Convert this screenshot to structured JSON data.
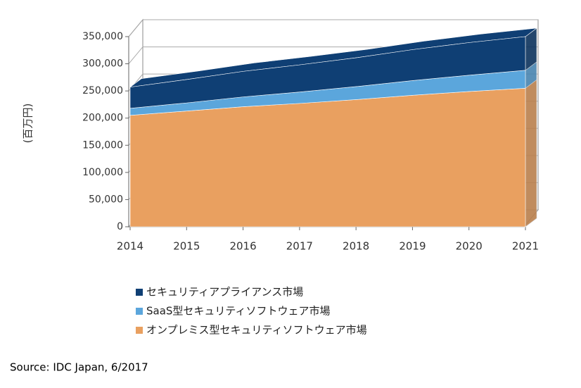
{
  "chart_data": {
    "type": "area3d",
    "y_label": "(百万円)",
    "categories": [
      "2014",
      "2015",
      "2016",
      "2017",
      "2018",
      "2019",
      "2020",
      "2021"
    ],
    "series": [
      {
        "name": "セキュリティアプライアンス市場",
        "color": "#0f3f74",
        "values": [
          39000,
          43000,
          47000,
          50000,
          53000,
          57000,
          60000,
          62000
        ]
      },
      {
        "name": "SaaS型セキュリティソフトウェア市場",
        "color": "#5ba6dc",
        "values": [
          13000,
          15000,
          18000,
          21000,
          24000,
          27000,
          30000,
          33000
        ]
      },
      {
        "name": "オンプレミス型セキュリティソフトウェア市場",
        "color": "#e9a060",
        "values": [
          205000,
          213000,
          221000,
          227000,
          234000,
          242000,
          249000,
          255000
        ]
      }
    ],
    "ylim": [
      0,
      350000
    ],
    "yticks": [
      0,
      {
        "value": 50000,
        "label": "50,000"
      },
      {
        "value": 100000,
        "label": "100,000"
      },
      {
        "value": 150000,
        "label": "150,000"
      },
      {
        "value": 200000,
        "label": "200,000"
      },
      {
        "value": 250000,
        "label": "250,000"
      },
      {
        "value": 300000,
        "label": "300,000"
      },
      {
        "value": 350000,
        "label": "350,000"
      }
    ],
    "stacked": true,
    "source": "Source: IDC Japan, 6/2017"
  }
}
